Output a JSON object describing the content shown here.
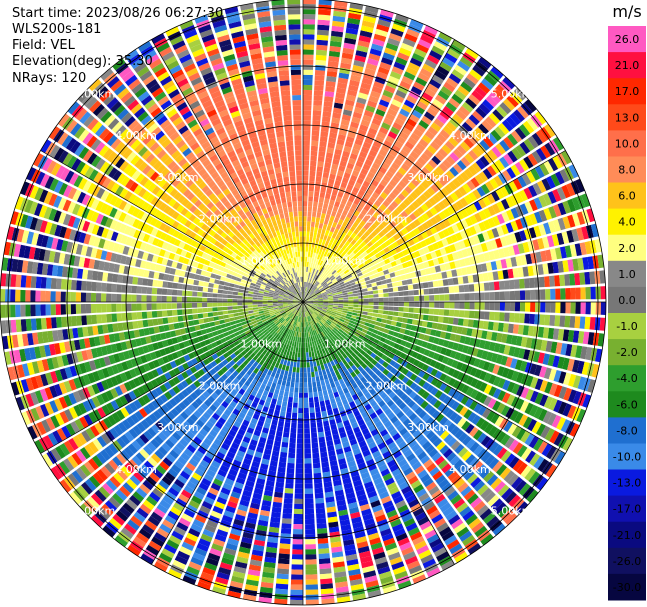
{
  "header": {
    "start_time": "Start time: 2023/08/26 06:27:30",
    "station": "WLS200s-181",
    "field": "Field: VEL",
    "elevation": "Elevation(deg): 35.30",
    "nrays": "NRays: 120"
  },
  "chart_data": {
    "type": "heatmap",
    "projection": "polar-ppi",
    "range_rings_km": [
      1,
      2,
      3,
      4,
      5
    ],
    "ring_labels": [
      "1.00km",
      "2.00km",
      "3.00km",
      "4.00km",
      "5.00km"
    ],
    "max_range_km": 6,
    "radials": 120,
    "colorbar": {
      "unit": "m/s",
      "tick_labels": [
        "26.0",
        "21.0",
        "17.0",
        "13.0",
        "10.0",
        "8.0",
        "6.0",
        "4.0",
        "2.0",
        "1.0",
        "0.0",
        "-1.0",
        "-2.0",
        "-4.0",
        "-6.0",
        "-8.0",
        "-10.0",
        "-13.0",
        "-17.0",
        "-21.0",
        "-26.0",
        "-30.0"
      ],
      "colors": [
        "#ff59c2",
        "#ff1040",
        "#ff2800",
        "#ff4a1a",
        "#ff6f4a",
        "#ff8c58",
        "#ffc21a",
        "#fff200",
        "#ffff80",
        "#888888",
        "#777777",
        "#a8d040",
        "#78b030",
        "#2e9e2e",
        "#1e8a1e",
        "#1f6fd0",
        "#3a8ae8",
        "#0a1ae0",
        "#1010b0",
        "#0a0a80",
        "#101060",
        "#060640"
      ]
    }
  }
}
